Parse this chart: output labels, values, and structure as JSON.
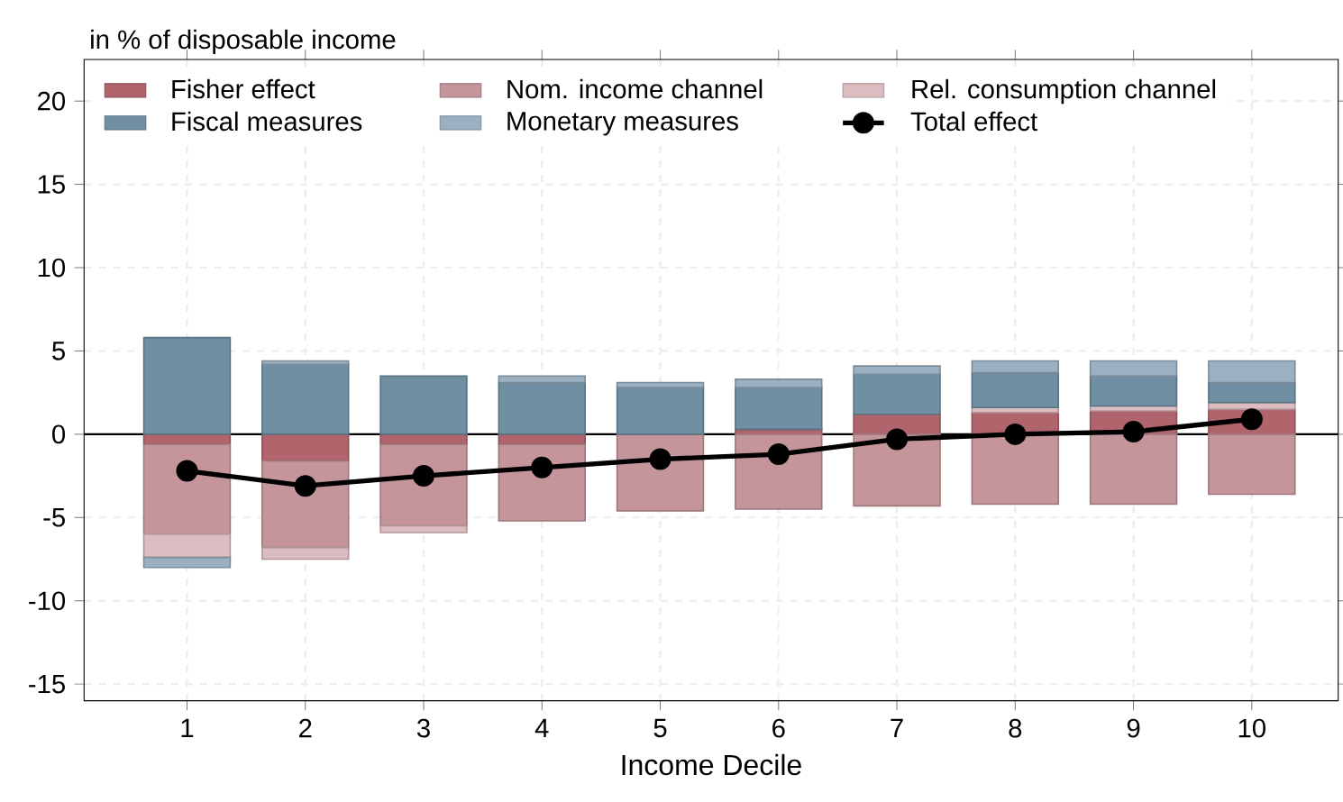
{
  "chart_data": {
    "type": "bar",
    "stacked": true,
    "ylabel": "in % of disposable income",
    "xlabel": "Income Decile",
    "categories": [
      "1",
      "2",
      "3",
      "4",
      "5",
      "6",
      "7",
      "8",
      "9",
      "10"
    ],
    "series": [
      {
        "name": "Fisher effect",
        "color": "#b0646c",
        "values": [
          -0.6,
          -1.6,
          -0.6,
          -0.6,
          0,
          0.3,
          1.2,
          1.3,
          1.4,
          1.5
        ]
      },
      {
        "name": "Nom. income channel",
        "color": "#c4959a",
        "values": [
          -5.4,
          -5.2,
          -4.9,
          -4.6,
          -4.6,
          -4.5,
          -4.3,
          -4.2,
          -4.2,
          -3.6
        ]
      },
      {
        "name": "Rel. consumption channel",
        "color": "#dcbcc0",
        "values": [
          -1.4,
          -0.7,
          -0.4,
          0,
          0,
          0,
          0,
          0.3,
          0.3,
          0.4
        ]
      },
      {
        "name": "Fiscal measures",
        "color": "#718fa3",
        "values": [
          5.8,
          4.2,
          3.5,
          3.1,
          2.8,
          2.5,
          2.4,
          2.1,
          1.8,
          1.2
        ]
      },
      {
        "name": "Monetary measures",
        "color": "#9bb0c0",
        "values": [
          -0.6,
          0.2,
          0,
          0.4,
          0.3,
          0.5,
          0.5,
          0.7,
          0.9,
          1.3
        ]
      },
      {
        "name": "Total effect",
        "type": "line",
        "color": "#000000",
        "marker": "circle",
        "values": [
          -2.2,
          -3.1,
          -2.5,
          -2.0,
          -1.5,
          -1.2,
          -0.3,
          0,
          0.15,
          0.9
        ]
      }
    ],
    "ylim": [
      -16,
      22.5
    ],
    "yticks": [
      -15,
      -10,
      -5,
      0,
      5,
      10,
      15,
      20
    ],
    "grid": true,
    "legend": "top left",
    "ref_lines": [
      {
        "axis": "y",
        "value": 0,
        "color": "#000000"
      }
    ]
  }
}
